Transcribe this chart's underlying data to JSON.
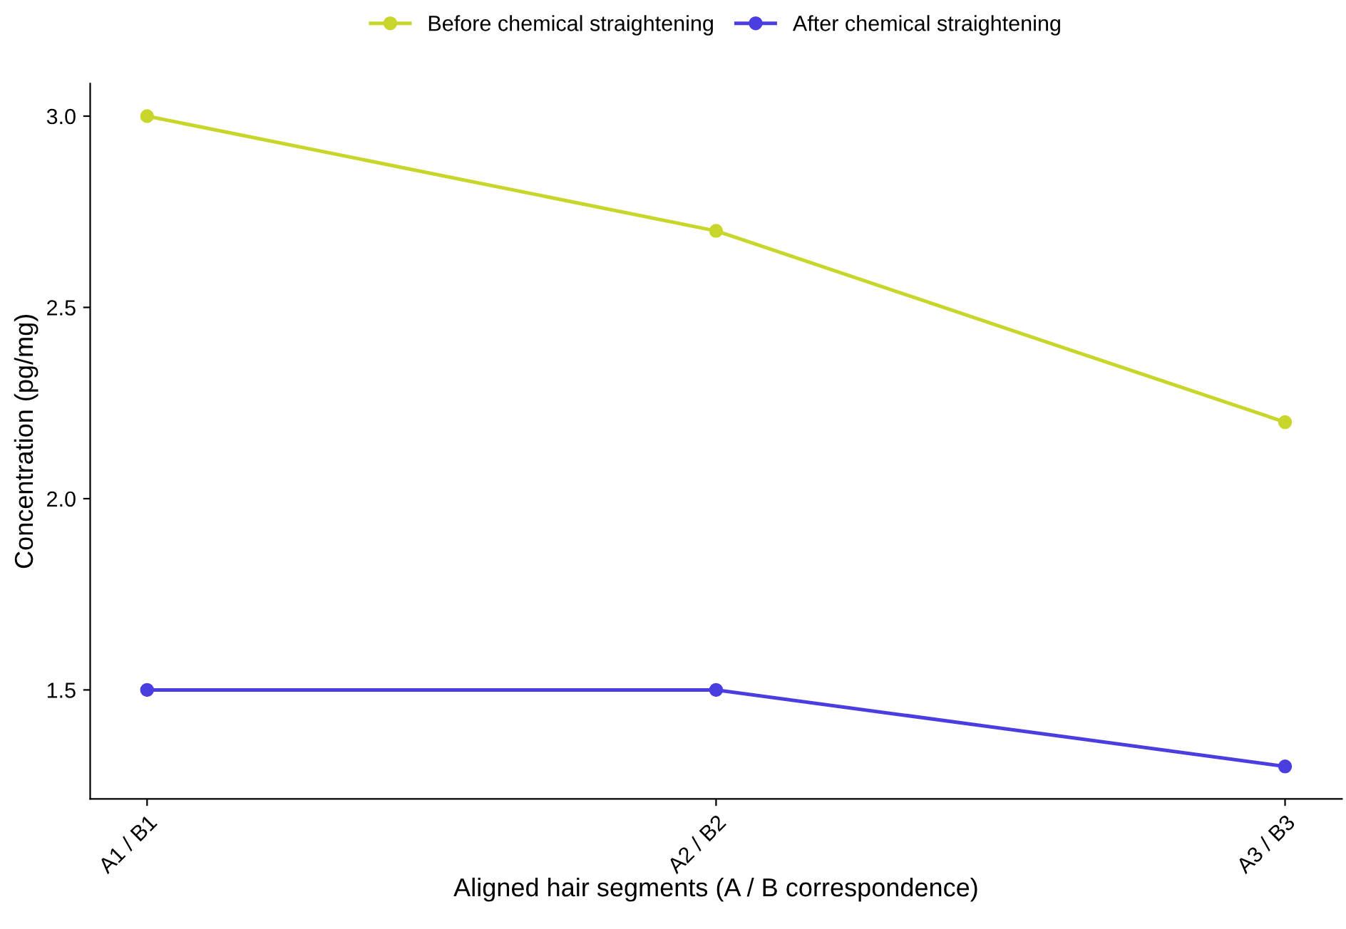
{
  "chart_data": {
    "type": "line",
    "xlabel": "Aligned hair segments (A / B correspondence)",
    "ylabel": "Concentration (pg/mg)",
    "categories": [
      "A1 / B1",
      "A2 / B2",
      "A3 / B3"
    ],
    "series": [
      {
        "name": "Before chemical straightening",
        "color": "#c8d62b",
        "values": [
          3.0,
          2.7,
          2.2
        ]
      },
      {
        "name": "After chemical straightening",
        "color": "#4b3ee0",
        "values": [
          1.5,
          1.5,
          1.3
        ]
      }
    ],
    "ylim": [
      1.215,
      3.085
    ],
    "yticks": [
      {
        "value": 1.5,
        "label": "1.5"
      },
      {
        "value": 2.0,
        "label": "2.0"
      },
      {
        "value": 2.5,
        "label": "2.5"
      },
      {
        "value": 3.0,
        "label": "3.0"
      }
    ],
    "marker": "circle",
    "line_style": "solid",
    "legend": "top",
    "grid": false
  }
}
